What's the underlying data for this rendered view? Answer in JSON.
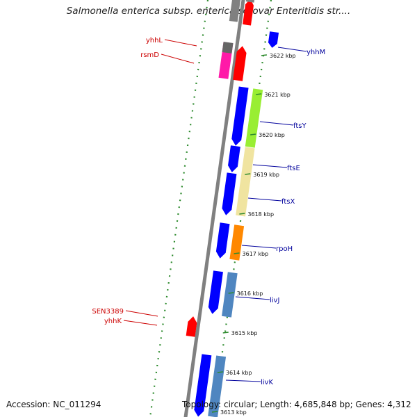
{
  "title": "Salmonella enterica subsp. enterica serovar Enteritidis str....",
  "footer": {
    "accession": "Accession: NC_011294",
    "topology": "Topology: circular; Length: 4,685,848 bp; Genes: 4,312"
  },
  "scale_ticks": [
    {
      "label": "3622 kbp"
    },
    {
      "label": "3621 kbp"
    },
    {
      "label": "3620 kbp"
    },
    {
      "label": "3619 kbp"
    },
    {
      "label": "3618 kbp"
    },
    {
      "label": "3617 kbp"
    },
    {
      "label": "3616 kbp"
    },
    {
      "label": "3615 kbp"
    },
    {
      "label": "3614 kbp"
    },
    {
      "label": "3613 kbp"
    }
  ],
  "gene_labels_right": [
    "yhhM",
    "ftsY",
    "ftsE",
    "ftsX",
    "rpoH",
    "livJ",
    "livK"
  ],
  "gene_labels_left": [
    "yhhL",
    "rsmD",
    "SEN3389",
    "yhhK"
  ],
  "colors": {
    "backbone": "#808080",
    "forward_gene": "#ff0000",
    "reverse_gene": "#0000ff",
    "right_label": "#00009c",
    "left_label": "#cc0000",
    "scale_dots": "#2e8b2e",
    "cog_green": "#99ee33",
    "cog_pale": "#f0e4a0",
    "cog_orange": "#ff8800",
    "cog_steel": "#4f86c0",
    "cog_magenta": "#ff1aa8",
    "cog_grey": "#666666"
  }
}
